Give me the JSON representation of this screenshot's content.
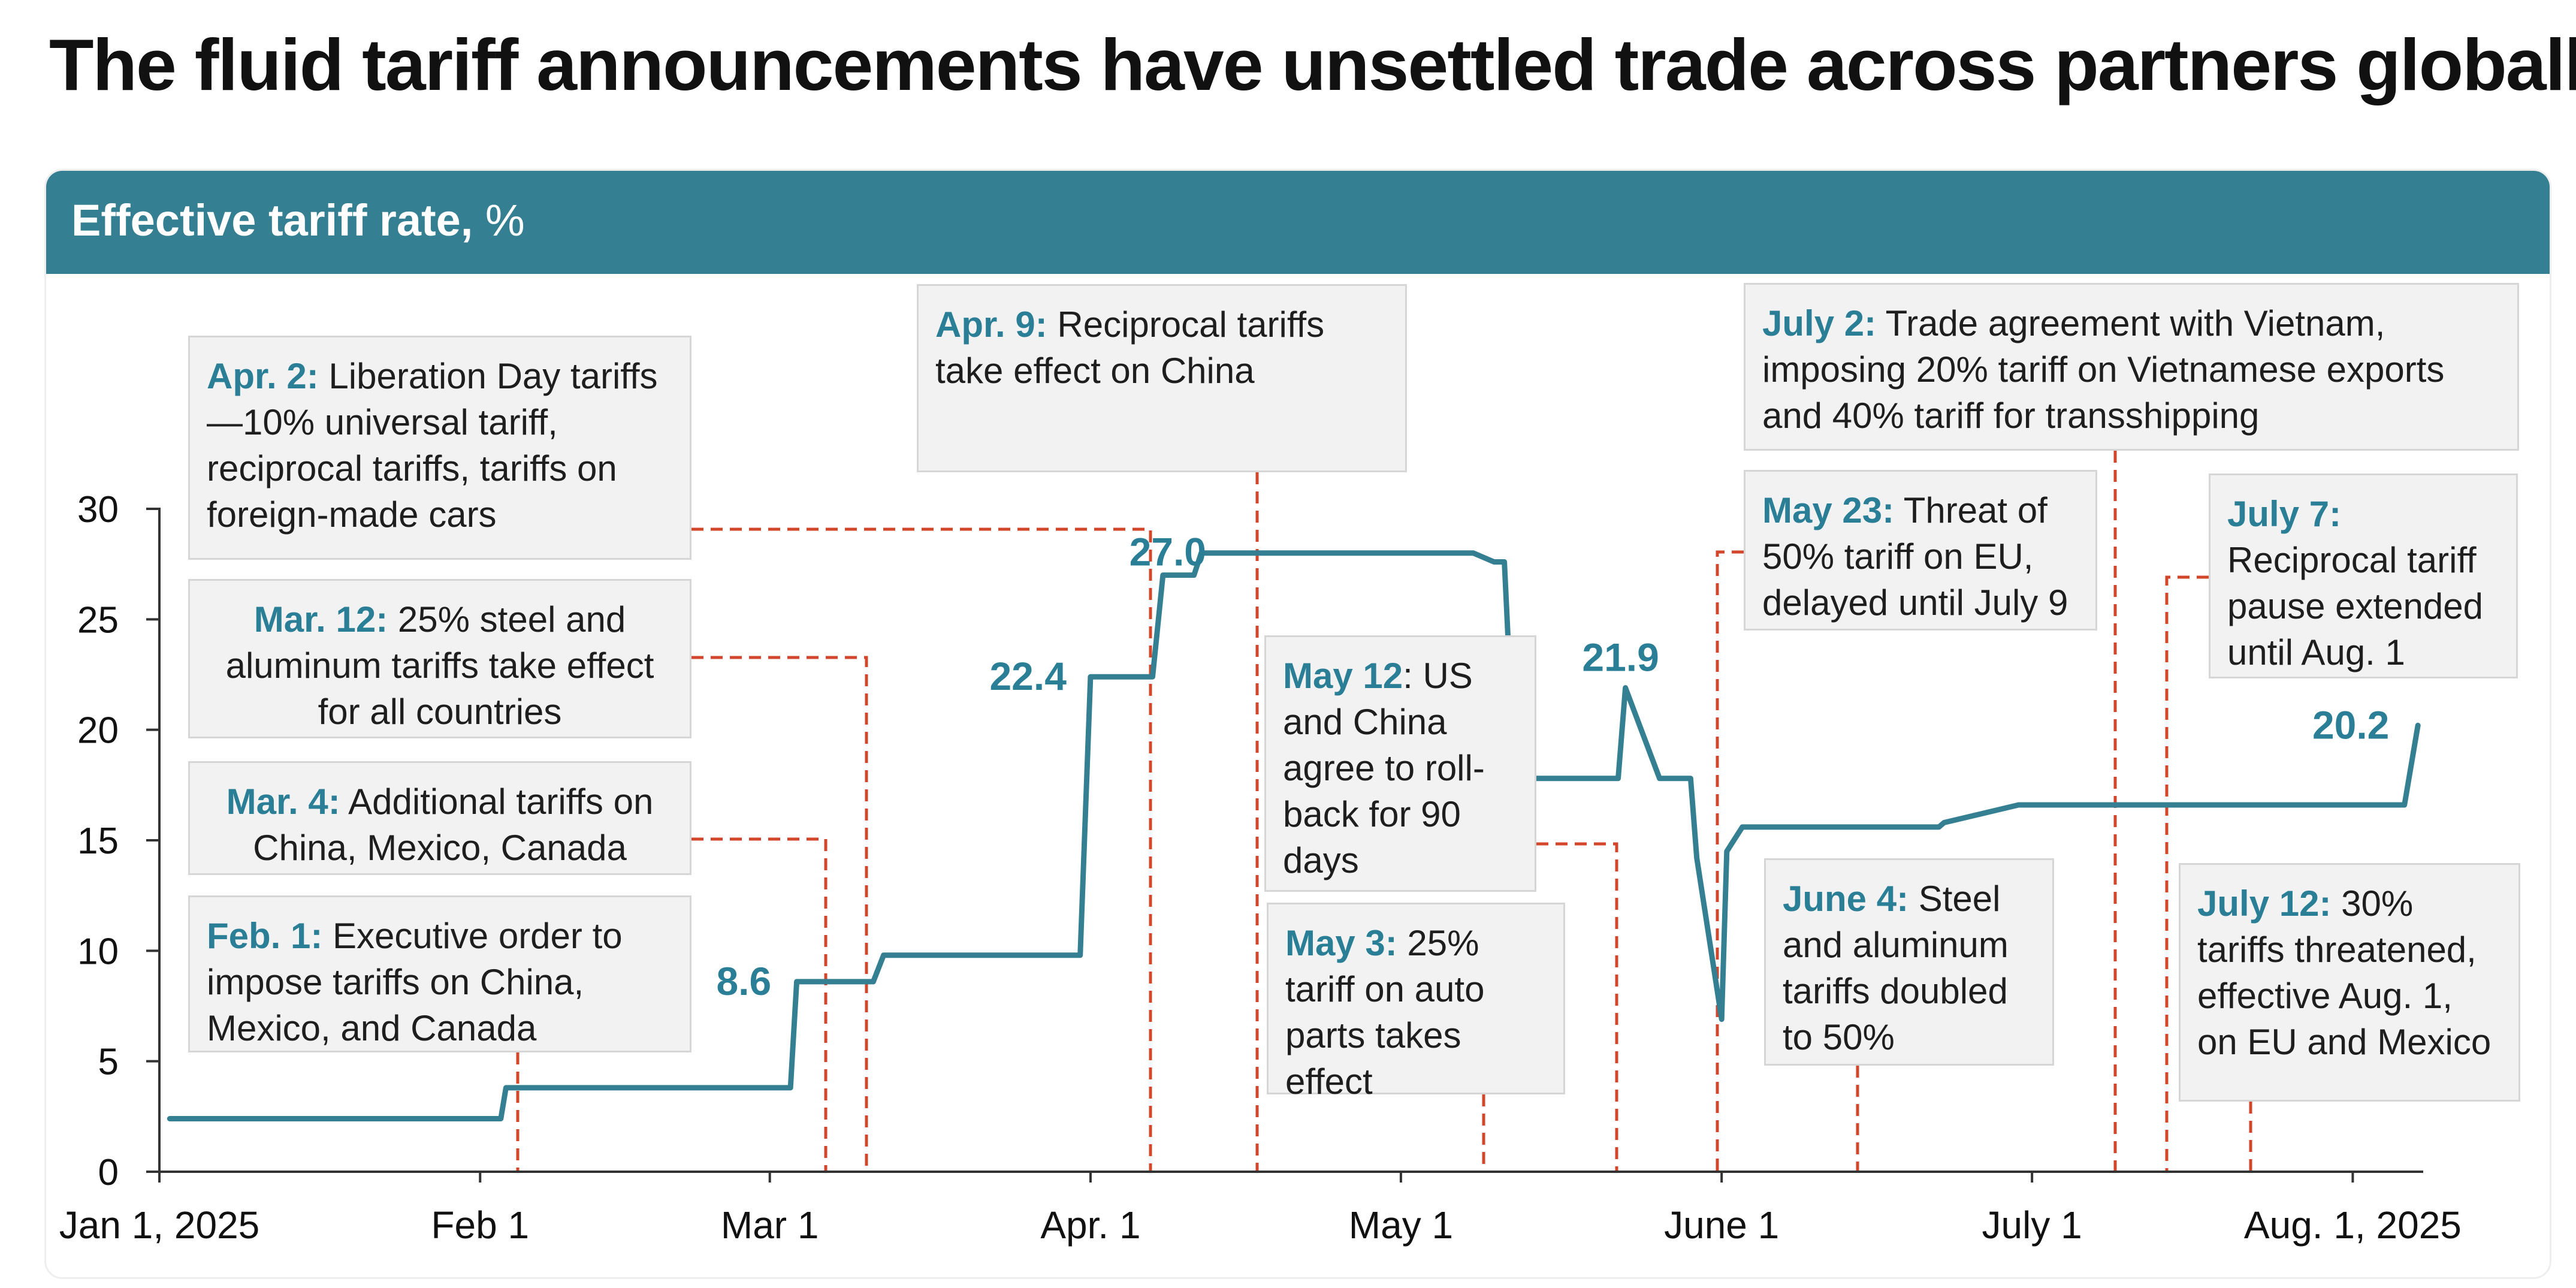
{
  "title": "The fluid tariff announcements have unsettled trade across partners globally",
  "panel": {
    "title_bold": "Effective tariff rate,",
    "title_unit": " %"
  },
  "colors": {
    "line": "#357f93",
    "header": "#357f93",
    "leader": "#d2472c",
    "label": "#2a7f97",
    "annotation_bg": "#f2f2f2"
  },
  "chart_data": {
    "type": "line",
    "title": "Effective tariff rate, %",
    "xlabel": "",
    "ylabel": "",
    "x_unit": "day of year 2025 (Jan 1 = 0)",
    "ylim": [
      0,
      30
    ],
    "xlim": [
      0,
      218
    ],
    "yticks": [
      0,
      5,
      10,
      15,
      20,
      25,
      30
    ],
    "xticks": [
      {
        "day": 0,
        "label": "Jan 1, 2025"
      },
      {
        "day": 31,
        "label": "Feb 1"
      },
      {
        "day": 59,
        "label": "Mar 1"
      },
      {
        "day": 90,
        "label": "Apr. 1"
      },
      {
        "day": 120,
        "label": "May 1"
      },
      {
        "day": 151,
        "label": "June 1"
      },
      {
        "day": 181,
        "label": "July 1"
      },
      {
        "day": 212,
        "label": "Aug. 1, 2025"
      }
    ],
    "series": [
      {
        "name": "Effective tariff rate",
        "x": [
          1,
          33,
          33.5,
          61,
          61.6,
          69,
          70,
          89,
          90,
          96,
          97,
          100,
          100.7,
          120,
          127,
          129,
          130,
          131,
          140,
          141,
          141.7,
          145,
          148,
          148.6,
          151,
          151.5,
          153,
          154.2,
          159,
          172,
          172.5,
          179.7,
          180.5,
          217,
          218.3
        ],
        "y": [
          2.4,
          2.4,
          3.8,
          3.8,
          8.6,
          8.6,
          9.8,
          9.8,
          22.4,
          22.4,
          27.0,
          27.0,
          28.0,
          28.0,
          28.0,
          27.6,
          27.6,
          17.8,
          17.8,
          17.8,
          21.9,
          17.8,
          17.8,
          14.2,
          6.9,
          14.5,
          15.6,
          15.6,
          15.6,
          15.6,
          15.8,
          16.6,
          16.6,
          16.6,
          20.2
        ]
      }
    ],
    "data_labels": [
      {
        "day": 61,
        "value": 8.6,
        "text": "8.6"
      },
      {
        "day": 90,
        "value": 22.4,
        "text": "22.4"
      },
      {
        "day": 97,
        "value": 27.0,
        "text": "27.0"
      },
      {
        "day": 141.7,
        "value": 21.9,
        "text": "21.9"
      },
      {
        "day": 218.3,
        "value": 20.2,
        "text": "20.2"
      }
    ],
    "events": [
      {
        "id": "feb1",
        "date": "Feb. 1:",
        "text": " Executive order to impose tariffs on China, Mexico, and Canada",
        "day": 33
      },
      {
        "id": "mar4",
        "date": "Mar. 4:",
        "text": " Additional tariffs on China, Mexico, Canada",
        "day": 62.5
      },
      {
        "id": "mar12",
        "date": "Mar. 12:",
        "text": " 25% steel and aluminum tariffs take effect for all countries",
        "day": 66
      },
      {
        "id": "apr2",
        "date": "Apr. 2:",
        "text": " Liberation Day tariffs—10% universal tariff, reciprocal tariffs, tariffs on foreign-made cars",
        "day": 92.5
      },
      {
        "id": "apr9",
        "date": "Apr. 9:",
        "text": " Reciprocal tariffs take effect on China",
        "day": 102.5
      },
      {
        "id": "may3",
        "date": "May 3:",
        "text": " 25% tariff on auto parts takes effect",
        "day": 123
      },
      {
        "id": "may12",
        "date": "May 12",
        "text": ": US and China agree to roll-back for 90 days",
        "day": 135
      },
      {
        "id": "may23",
        "date": "May 23:",
        "text": " Threat of 50% tariff on EU, delayed until July 9",
        "day": 144.5
      },
      {
        "id": "jun4",
        "date": "June 4:",
        "text": " Steel and aluminum tariffs doubled to 50%",
        "day": 158.5
      },
      {
        "id": "jul2",
        "date": "July 2:",
        "text": " Trade agreement with Vietnam, imposing 20% tariff on Vietnamese exports and 40% tariff for transshipping",
        "day": 182.5
      },
      {
        "id": "jul7",
        "date": "July 7:",
        "text": " Reciprocal tariff pause extended until Aug. 1",
        "day": 187
      },
      {
        "id": "jul12",
        "date": "July 12:",
        "text": " 30% tariffs threatened, effective Aug. 1, on EU and Mexico",
        "day": 194.5
      }
    ]
  }
}
